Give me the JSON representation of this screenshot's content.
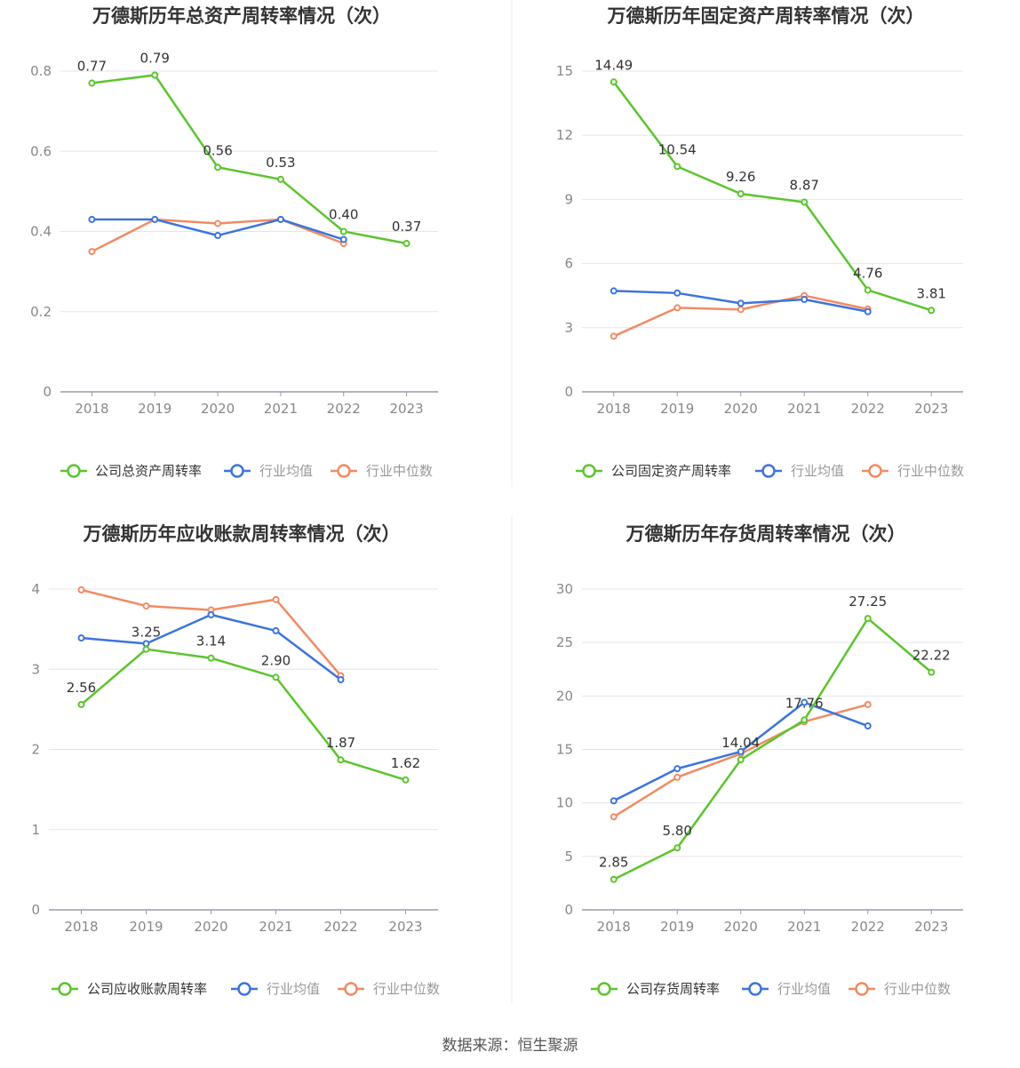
{
  "colors": {
    "company": "#5cc42e",
    "avg": "#3d74db",
    "median": "#f08b63",
    "grid": "#e4e4ee",
    "axis": "#9a9aaa"
  },
  "footer": {
    "source": "数据来源：恒生聚源"
  },
  "chart_data": [
    {
      "type": "line",
      "title": "万德斯历年总资产周转率情况（次）",
      "categories": [
        "2018",
        "2019",
        "2020",
        "2021",
        "2022",
        "2023"
      ],
      "yticks": [
        "0",
        "0.2",
        "0.4",
        "0.6",
        "0.8"
      ],
      "ylim": [
        0,
        0.8
      ],
      "series": [
        {
          "name": "公司总资产周转率",
          "values": [
            0.77,
            0.79,
            0.56,
            0.53,
            0.4,
            0.37
          ],
          "labels": [
            "0.77",
            "0.79",
            "0.56",
            "0.53",
            "0.40",
            "0.37"
          ]
        },
        {
          "name": "行业均值",
          "values": [
            0.43,
            0.43,
            0.39,
            0.43,
            0.38,
            null
          ]
        },
        {
          "name": "行业中位数",
          "values": [
            0.35,
            0.43,
            0.42,
            0.43,
            0.37,
            null
          ]
        }
      ],
      "legend": "bottom"
    },
    {
      "type": "line",
      "title": "万德斯历年固定资产周转率情况（次）",
      "categories": [
        "2018",
        "2019",
        "2020",
        "2021",
        "2022",
        "2023"
      ],
      "yticks": [
        "0",
        "3",
        "6",
        "9",
        "12",
        "15"
      ],
      "ylim": [
        0,
        15
      ],
      "series": [
        {
          "name": "公司固定资产周转率",
          "values": [
            14.49,
            10.54,
            9.26,
            8.87,
            4.76,
            3.81
          ],
          "labels": [
            "14.49",
            "10.54",
            "9.26",
            "8.87",
            "4.76",
            "3.81"
          ]
        },
        {
          "name": "行业均值",
          "values": [
            4.72,
            4.62,
            4.14,
            4.32,
            3.75,
            null
          ]
        },
        {
          "name": "行业中位数",
          "values": [
            2.6,
            3.93,
            3.85,
            4.5,
            3.87,
            null
          ]
        }
      ],
      "legend": "bottom"
    },
    {
      "type": "line",
      "title": "万德斯历年应收账款周转率情况（次）",
      "categories": [
        "2018",
        "2019",
        "2020",
        "2021",
        "2022",
        "2023"
      ],
      "yticks": [
        "0",
        "1",
        "2",
        "3",
        "4"
      ],
      "ylim": [
        0,
        4
      ],
      "series": [
        {
          "name": "公司应收账款周转率",
          "values": [
            2.56,
            3.25,
            3.14,
            2.9,
            1.87,
            1.62
          ],
          "labels": [
            "2.56",
            "3.25",
            "3.14",
            "2.90",
            "1.87",
            "1.62"
          ]
        },
        {
          "name": "行业均值",
          "values": [
            3.39,
            3.32,
            3.68,
            3.48,
            2.87,
            null
          ]
        },
        {
          "name": "行业中位数",
          "values": [
            3.99,
            3.79,
            3.74,
            3.87,
            2.92,
            null
          ]
        }
      ],
      "legend": "bottom"
    },
    {
      "type": "line",
      "title": "万德斯历年存货周转率情况（次）",
      "categories": [
        "2018",
        "2019",
        "2020",
        "2021",
        "2022",
        "2023"
      ],
      "yticks": [
        "0",
        "5",
        "10",
        "15",
        "20",
        "25",
        "30"
      ],
      "ylim": [
        0,
        30
      ],
      "series": [
        {
          "name": "公司存货周转率",
          "values": [
            2.85,
            5.8,
            14.04,
            17.76,
            27.25,
            22.22
          ],
          "labels": [
            "2.85",
            "5.80",
            "14.04",
            "17.76",
            "27.25",
            "22.22"
          ]
        },
        {
          "name": "行业均值",
          "values": [
            10.2,
            13.2,
            14.8,
            19.4,
            17.2,
            null
          ]
        },
        {
          "name": "行业中位数",
          "values": [
            8.7,
            12.4,
            14.6,
            17.6,
            19.2,
            null
          ]
        }
      ],
      "legend": "bottom"
    }
  ]
}
